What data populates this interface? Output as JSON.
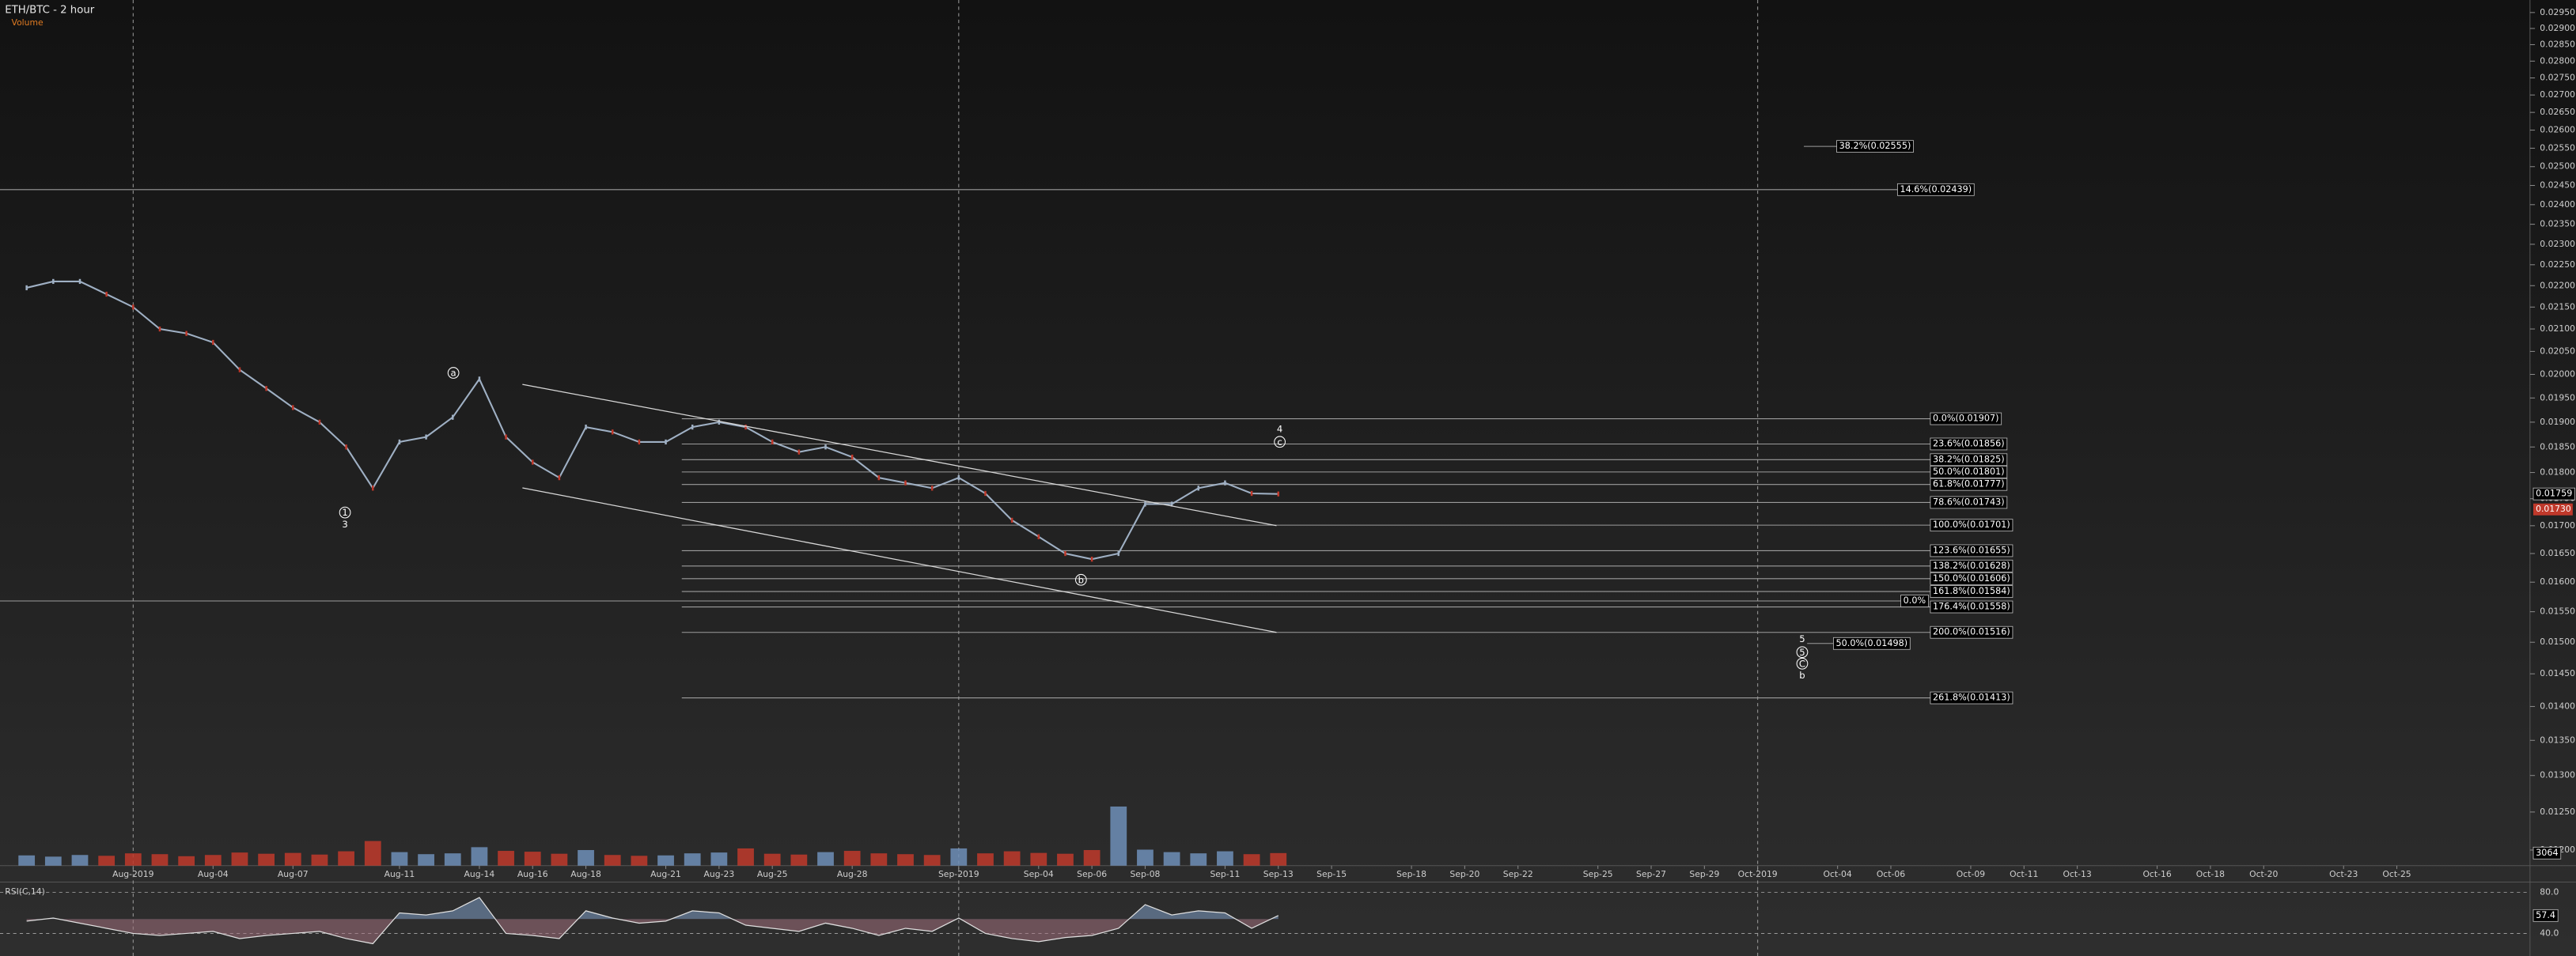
{
  "chart_data": {
    "type": "line",
    "title": "ETH/BTC - 2 hour",
    "subtitle": "Volume",
    "rsi_title": "RSI(C,14)",
    "log_scale": true,
    "xlim": [
      "2019-07-27",
      "2019-10-30"
    ],
    "ylim": [
      0.0118,
      0.0299
    ],
    "xticks": [
      {
        "value": "2019-08-01",
        "label": "Aug-2019"
      },
      {
        "value": "2019-08-04",
        "label": "Aug-04"
      },
      {
        "value": "2019-08-07",
        "label": "Aug-07"
      },
      {
        "value": "2019-08-11",
        "label": "Aug-11"
      },
      {
        "value": "2019-08-14",
        "label": "Aug-14"
      },
      {
        "value": "2019-08-16",
        "label": "Aug-16"
      },
      {
        "value": "2019-08-18",
        "label": "Aug-18"
      },
      {
        "value": "2019-08-21",
        "label": "Aug-21"
      },
      {
        "value": "2019-08-23",
        "label": "Aug-23"
      },
      {
        "value": "2019-08-25",
        "label": "Aug-25"
      },
      {
        "value": "2019-08-28",
        "label": "Aug-28"
      },
      {
        "value": "2019-09-01",
        "label": "Sep-2019"
      },
      {
        "value": "2019-09-04",
        "label": "Sep-04"
      },
      {
        "value": "2019-09-06",
        "label": "Sep-06"
      },
      {
        "value": "2019-09-08",
        "label": "Sep-08"
      },
      {
        "value": "2019-09-11",
        "label": "Sep-11"
      },
      {
        "value": "2019-09-13",
        "label": "Sep-13"
      },
      {
        "value": "2019-09-15",
        "label": "Sep-15"
      },
      {
        "value": "2019-09-18",
        "label": "Sep-18"
      },
      {
        "value": "2019-09-20",
        "label": "Sep-20"
      },
      {
        "value": "2019-09-22",
        "label": "Sep-22"
      },
      {
        "value": "2019-09-25",
        "label": "Sep-25"
      },
      {
        "value": "2019-09-27",
        "label": "Sep-27"
      },
      {
        "value": "2019-09-29",
        "label": "Sep-29"
      },
      {
        "value": "2019-10-01",
        "label": "Oct-2019"
      },
      {
        "value": "2019-10-04",
        "label": "Oct-04"
      },
      {
        "value": "2019-10-06",
        "label": "Oct-06"
      },
      {
        "value": "2019-10-09",
        "label": "Oct-09"
      },
      {
        "value": "2019-10-11",
        "label": "Oct-11"
      },
      {
        "value": "2019-10-13",
        "label": "Oct-13"
      },
      {
        "value": "2019-10-16",
        "label": "Oct-16"
      },
      {
        "value": "2019-10-18",
        "label": "Oct-18"
      },
      {
        "value": "2019-10-20",
        "label": "Oct-20"
      },
      {
        "value": "2019-10-23",
        "label": "Oct-23"
      },
      {
        "value": "2019-10-25",
        "label": "Oct-25"
      }
    ],
    "yticks": [
      {
        "value": 0.012,
        "label": "0.01200"
      },
      {
        "value": 0.0125,
        "label": "0.01250"
      },
      {
        "value": 0.013,
        "label": "0.01300"
      },
      {
        "value": 0.0135,
        "label": "0.01350"
      },
      {
        "value": 0.014,
        "label": "0.01400"
      },
      {
        "value": 0.0145,
        "label": "0.01450"
      },
      {
        "value": 0.015,
        "label": "0.01500"
      },
      {
        "value": 0.0155,
        "label": "0.01550"
      },
      {
        "value": 0.016,
        "label": "0.01600"
      },
      {
        "value": 0.0165,
        "label": "0.01650"
      },
      {
        "value": 0.017,
        "label": "0.01700"
      },
      {
        "value": 0.0175,
        "label": "0.01750"
      },
      {
        "value": 0.018,
        "label": "0.01800"
      },
      {
        "value": 0.0185,
        "label": "0.01850"
      },
      {
        "value": 0.019,
        "label": "0.01900"
      },
      {
        "value": 0.0195,
        "label": "0.01950"
      },
      {
        "value": 0.02,
        "label": "0.02000"
      },
      {
        "value": 0.0205,
        "label": "0.02050"
      },
      {
        "value": 0.021,
        "label": "0.02100"
      },
      {
        "value": 0.0215,
        "label": "0.02150"
      },
      {
        "value": 0.022,
        "label": "0.02200"
      },
      {
        "value": 0.0225,
        "label": "0.02250"
      },
      {
        "value": 0.023,
        "label": "0.02300"
      },
      {
        "value": 0.0235,
        "label": "0.02350"
      },
      {
        "value": 0.024,
        "label": "0.02400"
      },
      {
        "value": 0.0245,
        "label": "0.02450"
      },
      {
        "value": 0.025,
        "label": "0.02500"
      },
      {
        "value": 0.0255,
        "label": "0.02550"
      },
      {
        "value": 0.026,
        "label": "0.02600"
      },
      {
        "value": 0.0265,
        "label": "0.02650"
      },
      {
        "value": 0.027,
        "label": "0.02700"
      },
      {
        "value": 0.0275,
        "label": "0.02750"
      },
      {
        "value": 0.028,
        "label": "0.02800"
      },
      {
        "value": 0.0285,
        "label": "0.02850"
      },
      {
        "value": 0.029,
        "label": "0.02900"
      },
      {
        "value": 0.0295,
        "label": "0.02950"
      }
    ],
    "x": [
      "2019-07-28",
      "2019-07-29",
      "2019-07-30",
      "2019-07-31",
      "2019-08-01",
      "2019-08-02",
      "2019-08-03",
      "2019-08-04",
      "2019-08-05",
      "2019-08-06",
      "2019-08-07",
      "2019-08-08",
      "2019-08-09",
      "2019-08-10",
      "2019-08-11",
      "2019-08-12",
      "2019-08-13",
      "2019-08-14",
      "2019-08-15",
      "2019-08-16",
      "2019-08-17",
      "2019-08-18",
      "2019-08-19",
      "2019-08-20",
      "2019-08-21",
      "2019-08-22",
      "2019-08-23",
      "2019-08-24",
      "2019-08-25",
      "2019-08-26",
      "2019-08-27",
      "2019-08-28",
      "2019-08-29",
      "2019-08-30",
      "2019-08-31",
      "2019-09-01",
      "2019-09-02",
      "2019-09-03",
      "2019-09-04",
      "2019-09-05",
      "2019-09-06",
      "2019-09-07",
      "2019-09-08",
      "2019-09-09",
      "2019-09-10",
      "2019-09-11",
      "2019-09-12",
      "2019-09-13"
    ],
    "price": [
      0.02195,
      0.0221,
      0.0221,
      0.0218,
      0.0215,
      0.021,
      0.0209,
      0.0207,
      0.0201,
      0.0197,
      0.0193,
      0.019,
      0.0185,
      0.0177,
      0.0186,
      0.0187,
      0.0191,
      0.0199,
      0.0187,
      0.0182,
      0.0179,
      0.0189,
      0.0188,
      0.0186,
      0.0186,
      0.0189,
      0.019,
      0.0189,
      0.0186,
      0.0184,
      0.0185,
      0.0183,
      0.0179,
      0.0178,
      0.0177,
      0.0179,
      0.0176,
      0.0171,
      0.0168,
      0.0165,
      0.0164,
      0.0165,
      0.0174,
      0.0174,
      0.0177,
      0.0178,
      0.0176,
      0.01759
    ],
    "price_color": "#9fb0c4",
    "price_labels": [
      {
        "value": 0.0173,
        "label": "0.01730",
        "color": "#c0392b"
      }
    ],
    "volume": [
      2500,
      2200,
      2600,
      2400,
      3000,
      2800,
      2300,
      2600,
      3200,
      2900,
      3100,
      2700,
      3500,
      6000,
      3300,
      2800,
      3000,
      4500,
      3600,
      3400,
      2900,
      3800,
      2600,
      2400,
      2500,
      3000,
      3200,
      4200,
      2900,
      2700,
      3300,
      3600,
      3000,
      2800,
      2600,
      4200,
      3000,
      3500,
      3100,
      2900,
      3800,
      14400,
      3900,
      3300,
      3000,
      3500,
      2800,
      3064
    ],
    "vlim": [
      0,
      16000
    ],
    "up_color": "#6f8fb8",
    "down_color": "#c0392b",
    "rsi": [
      52,
      55,
      50,
      45,
      40,
      38,
      40,
      42,
      35,
      38,
      40,
      42,
      35,
      30,
      60,
      58,
      62,
      75,
      40,
      38,
      35,
      62,
      55,
      50,
      52,
      62,
      60,
      48,
      45,
      42,
      50,
      45,
      38,
      45,
      42,
      55,
      40,
      35,
      32,
      36,
      38,
      45,
      68,
      58,
      62,
      60,
      45,
      57.4
    ],
    "rsi_lim": [
      18,
      90
    ],
    "rsi_ticks": [
      {
        "value": 80,
        "label": "80.0"
      },
      {
        "value": 40,
        "label": "40.0"
      }
    ],
    "fib_main": [
      {
        "label": "0.0%(0.01907)",
        "value": 0.01907
      },
      {
        "label": "23.6%(0.01856)",
        "value": 0.01856
      },
      {
        "label": "38.2%(0.01825)",
        "value": 0.01825
      },
      {
        "label": "50.0%(0.01801)",
        "value": 0.01801
      },
      {
        "label": "61.8%(0.01777)",
        "value": 0.01777
      },
      {
        "label": "78.6%(0.01743)",
        "value": 0.01743
      },
      {
        "label": "100.0%(0.01701)",
        "value": 0.01701
      },
      {
        "label": "123.6%(0.01655)",
        "value": 0.01655
      },
      {
        "label": "138.2%(0.01628)",
        "value": 0.01628
      },
      {
        "label": "150.0%(0.01606)",
        "value": 0.01606
      },
      {
        "label": "161.8%(0.01584)",
        "value": 0.01584
      },
      {
        "label": "176.4%(0.01558)",
        "value": 0.01558
      },
      {
        "label": "200.0%(0.01516)",
        "value": 0.01516
      },
      {
        "label": "261.8%(0.01413)",
        "value": 0.01413
      }
    ],
    "fib_other": [
      {
        "label": "38.2%(0.02555)",
        "value": 0.02555
      },
      {
        "label": "14.6%(0.02439)",
        "value": 0.02439
      },
      {
        "label": "0.0%",
        "value": 0.01568
      },
      {
        "label": "50.0%(0.01498)",
        "value": 0.01498
      }
    ],
    "wave_labels": [
      {
        "text": "a",
        "circled": true
      },
      {
        "text": "1",
        "circled": true
      },
      {
        "text": "3",
        "circled": false
      },
      {
        "text": "4",
        "circled": false
      },
      {
        "text": "c",
        "circled": true
      },
      {
        "text": "b",
        "circled": true
      },
      {
        "text": "5",
        "circled": false
      },
      {
        "text": "5",
        "circled": true
      },
      {
        "text": "C",
        "circled": true
      },
      {
        "text": "b",
        "circled": false
      }
    ]
  }
}
